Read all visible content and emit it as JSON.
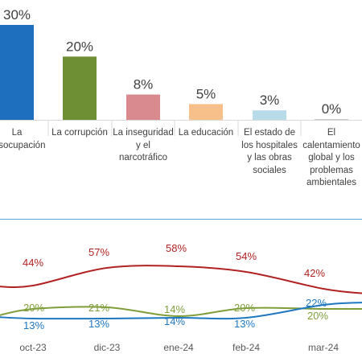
{
  "colors": {
    "bar_series": [
      "#1f6fbf",
      "#6f8f34",
      "#d98a8f",
      "#f7c08a",
      "#b7dbe8",
      "#c8c8c8"
    ],
    "divider": "#5aa5d8",
    "line_series": [
      "#b22222",
      "#7f9e3a",
      "#1f77c0"
    ]
  },
  "chart_data": [
    {
      "type": "bar",
      "categories": [
        "La\ndesocupación",
        "La corrupción",
        "La inseguridad\ny el\nnarcotráfico",
        "La educación",
        "El estado de\nlos hospitales\ny las obras\nsociales",
        "El\ncalentamiento\nglobal y los\nproblemas\nambientales"
      ],
      "values": [
        30,
        20,
        8,
        5,
        3,
        0
      ],
      "labels": [
        "30%",
        "20%",
        "8%",
        "5%",
        "3%",
        "0%"
      ],
      "ylim": [
        0,
        30
      ],
      "grid": false
    },
    {
      "type": "line",
      "categories": [
        "oct-23",
        "dic-23",
        "ene-24",
        "feb-24",
        "mar-24"
      ],
      "series": [
        {
          "values": [
            44,
            57,
            58,
            54,
            42
          ],
          "labels": [
            "44%",
            "57%",
            "58%",
            "54%",
            "42%"
          ]
        },
        {
          "values": [
            20,
            21,
            14,
            20,
            20
          ],
          "labels": [
            "20%",
            "21%",
            "14%",
            "20%",
            "20%"
          ]
        },
        {
          "values": [
            13,
            13,
            14,
            13,
            22
          ],
          "labels": [
            "13%",
            "13%",
            "14%",
            "13%",
            "22%"
          ]
        }
      ],
      "grid": false
    }
  ]
}
